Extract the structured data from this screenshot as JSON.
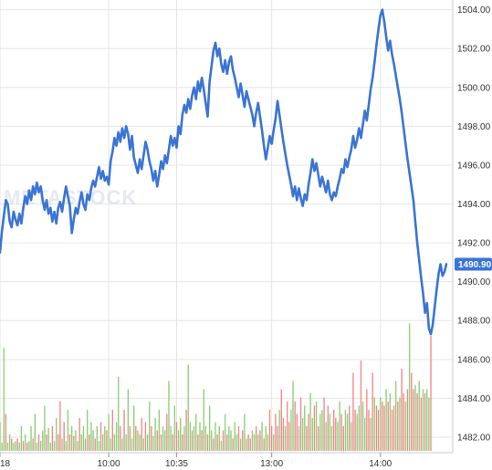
{
  "chart_data": {
    "type": "line",
    "title": "",
    "xlabel": "",
    "ylabel": "",
    "ylim": [
      1481.2,
      1504.5
    ],
    "grid": true,
    "watermark": "METASTOCK",
    "y_ticks": [
      1482,
      1484,
      1486,
      1488,
      1490,
      1492,
      1494,
      1496,
      1498,
      1500,
      1502,
      1504
    ],
    "y_tick_labels": [
      "1482.00",
      "1484.00",
      "1486.00",
      "1488.00",
      "1490.00",
      "1492.00",
      "1494.00",
      "1496.00",
      "1498.00",
      "1500.00",
      "1502.00",
      "1504.00"
    ],
    "x_ticks": [
      {
        "label": "18",
        "index": 0
      },
      {
        "label": "10:00",
        "index": 56
      },
      {
        "label": "10:35",
        "index": 91
      },
      {
        "label": "13:00",
        "index": 140
      },
      {
        "label": "14:00",
        "index": 196
      }
    ],
    "last_value": 1490.9,
    "last_value_label": "1490.90",
    "colors": {
      "line": "#3a74d4",
      "volume_up": "#8fcf7a",
      "volume_down": "#f08a8a",
      "grid": "#e6e6e6",
      "last_label_bg": "#3a74d4"
    },
    "series": [
      {
        "values": [
          1491.5,
          1492.6,
          1493.4,
          1494.2,
          1494.0,
          1493.1,
          1492.8,
          1493.6,
          1493.2,
          1492.9,
          1493.5,
          1493.0,
          1493.8,
          1494.4,
          1494.0,
          1494.7,
          1494.2,
          1494.9,
          1494.5,
          1495.1,
          1494.6,
          1494.9,
          1494.2,
          1493.7,
          1494.2,
          1493.5,
          1493.8,
          1493.1,
          1493.6,
          1493.0,
          1493.8,
          1494.1,
          1493.6,
          1494.3,
          1494.9,
          1494.4,
          1493.9,
          1492.5,
          1493.2,
          1493.8,
          1493.5,
          1494.1,
          1494.6,
          1494.0,
          1493.7,
          1494.5,
          1494.2,
          1494.8,
          1495.2,
          1494.9,
          1495.4,
          1495.9,
          1495.3,
          1495.7,
          1495.2,
          1495.4,
          1495.0,
          1496.2,
          1496.7,
          1497.4,
          1497.0,
          1497.7,
          1497.2,
          1497.9,
          1497.4,
          1498.0,
          1497.6,
          1496.8,
          1497.5,
          1496.4,
          1496.0,
          1495.6,
          1496.3,
          1495.8,
          1496.5,
          1497.2,
          1496.8,
          1496.2,
          1495.8,
          1495.2,
          1495.7,
          1494.9,
          1495.5,
          1496.2,
          1495.8,
          1496.5,
          1496.1,
          1496.8,
          1497.5,
          1497.0,
          1497.4,
          1496.9,
          1498.0,
          1497.6,
          1498.6,
          1499.1,
          1498.7,
          1499.4,
          1498.9,
          1499.6,
          1500.0,
          1499.4,
          1500.3,
          1499.8,
          1500.5,
          1499.9,
          1499.2,
          1498.5,
          1500.3,
          1501.1,
          1501.9,
          1502.3,
          1501.6,
          1502.0,
          1501.2,
          1500.8,
          1501.4,
          1500.7,
          1501.3,
          1501.6,
          1500.9,
          1500.5,
          1500.0,
          1499.5,
          1500.2,
          1499.6,
          1499.0,
          1499.8,
          1499.4,
          1499.0,
          1498.6,
          1498.0,
          1498.7,
          1499.2,
          1498.5,
          1497.8,
          1497.0,
          1496.3,
          1496.9,
          1497.5,
          1497.1,
          1497.8,
          1498.4,
          1499.3,
          1498.6,
          1497.9,
          1497.2,
          1496.6,
          1496.0,
          1495.5,
          1495.0,
          1494.4,
          1494.9,
          1494.2,
          1494.8,
          1494.3,
          1493.9,
          1494.5,
          1494.2,
          1495.0,
          1495.6,
          1496.3,
          1495.7,
          1496.1,
          1495.5,
          1494.9,
          1495.4,
          1495.0,
          1494.6,
          1495.2,
          1494.5,
          1494.2,
          1494.6,
          1494.4,
          1494.9,
          1495.3,
          1495.8,
          1495.6,
          1496.3,
          1495.9,
          1496.4,
          1496.8,
          1497.5,
          1496.9,
          1497.3,
          1497.9,
          1497.4,
          1498.1,
          1498.8,
          1498.3,
          1499.1,
          1499.9,
          1500.5,
          1501.3,
          1502.2,
          1503.0,
          1503.7,
          1504.0,
          1503.4,
          1502.6,
          1501.9,
          1502.4,
          1501.7,
          1501.2,
          1500.6,
          1500.0,
          1499.4,
          1498.7,
          1497.9,
          1497.1,
          1496.3,
          1495.6,
          1494.9,
          1494.2,
          1493.1,
          1492.0,
          1491.1,
          1490.2,
          1489.4,
          1488.4,
          1488.9,
          1487.6,
          1487.3,
          1487.8,
          1488.7,
          1489.6,
          1490.4,
          1490.9,
          1490.3,
          1490.5,
          1490.9
        ]
      }
    ],
    "volume": {
      "values": [
        0.35,
        0.1,
        1.25,
        0.45,
        0.1,
        0.2,
        0.15,
        0.1,
        0.12,
        0.15,
        0.1,
        0.3,
        0.12,
        0.2,
        0.1,
        0.12,
        0.3,
        0.15,
        0.45,
        0.1,
        0.2,
        0.12,
        0.25,
        0.55,
        0.2,
        0.28,
        0.1,
        0.3,
        0.12,
        0.4,
        0.2,
        0.6,
        0.15,
        0.35,
        0.12,
        0.5,
        0.2,
        0.3,
        0.18,
        0.25,
        0.12,
        0.4,
        0.2,
        0.3,
        0.15,
        0.5,
        0.2,
        0.35,
        0.25,
        0.15,
        0.3,
        0.12,
        0.35,
        0.2,
        0.3,
        0.25,
        0.45,
        0.15,
        0.5,
        0.2,
        0.35,
        0.9,
        0.3,
        0.15,
        0.5,
        0.2,
        0.75,
        0.3,
        0.15,
        0.55,
        0.3,
        0.25,
        0.2,
        0.4,
        0.15,
        0.35,
        0.2,
        0.6,
        0.3,
        0.18,
        0.4,
        0.25,
        0.5,
        0.2,
        0.3,
        0.25,
        0.45,
        0.85,
        0.3,
        0.2,
        0.55,
        0.35,
        0.25,
        0.4,
        0.2,
        0.3,
        0.5,
        1.05,
        0.35,
        0.25,
        0.3,
        0.45,
        0.2,
        0.35,
        0.25,
        0.75,
        0.3,
        0.2,
        0.55,
        0.25,
        0.15,
        0.35,
        0.2,
        0.3,
        0.12,
        0.25,
        0.45,
        0.2,
        0.3,
        0.25,
        0.15,
        0.35,
        0.2,
        0.3,
        0.15,
        0.25,
        0.45,
        0.15,
        0.2,
        0.15,
        0.25,
        0.2,
        0.3,
        0.2,
        0.25,
        0.35,
        0.15,
        0.3,
        0.2,
        0.5,
        0.3,
        0.2,
        0.45,
        0.3,
        0.5,
        0.75,
        0.4,
        0.3,
        0.6,
        0.35,
        0.5,
        0.85,
        0.6,
        0.45,
        0.3,
        0.65,
        0.4,
        0.55,
        0.3,
        0.45,
        0.7,
        0.4,
        0.55,
        0.6,
        0.3,
        0.45,
        0.5,
        0.65,
        0.35,
        0.55,
        0.45,
        0.3,
        0.5,
        0.4,
        0.35,
        0.6,
        0.45,
        0.3,
        0.5,
        0.45,
        0.55,
        0.35,
        0.95,
        0.5,
        0.45,
        0.55,
        1.1,
        0.6,
        0.4,
        0.75,
        0.5,
        0.4,
        0.95,
        0.65,
        0.55,
        0.5,
        0.65,
        0.6,
        0.55,
        0.75,
        0.6,
        0.7,
        0.5,
        0.55,
        0.85,
        0.6,
        0.65,
        1.0,
        0.7,
        0.6,
        0.75,
        1.55,
        0.95,
        0.75,
        0.8,
        0.7,
        0.85,
        0.65,
        0.75,
        0.7,
        0.75,
        0.65,
        1.4
      ],
      "up": [
        1,
        1,
        1,
        0,
        1,
        1,
        0,
        1,
        1,
        0,
        1,
        1,
        0,
        1,
        0,
        1,
        1,
        0,
        1,
        1,
        0,
        1,
        1,
        1,
        0,
        1,
        1,
        0,
        1,
        1,
        0,
        0,
        1,
        0,
        1,
        1,
        0,
        1,
        0,
        1,
        1,
        0,
        1,
        1,
        0,
        1,
        0,
        1,
        1,
        0,
        1,
        1,
        0,
        1,
        1,
        0,
        1,
        1,
        0,
        1,
        1,
        1,
        0,
        1,
        0,
        1,
        1,
        0,
        1,
        1,
        0,
        1,
        1,
        0,
        1,
        0,
        1,
        1,
        0,
        1,
        1,
        0,
        1,
        0,
        1,
        1,
        0,
        1,
        1,
        0,
        1,
        0,
        1,
        1,
        0,
        1,
        0,
        1,
        1,
        0,
        1,
        1,
        0,
        1,
        0,
        1,
        1,
        0,
        1,
        1,
        0,
        1,
        0,
        1,
        1,
        0,
        1,
        0,
        1,
        1,
        0,
        1,
        1,
        0,
        1,
        0,
        1,
        1,
        0,
        0,
        1,
        1,
        0,
        1,
        0,
        1,
        0,
        1,
        1,
        0,
        0,
        1,
        0,
        0,
        1,
        0,
        0,
        1,
        0,
        0,
        1,
        1,
        0,
        0,
        1,
        0,
        1,
        1,
        0,
        0,
        1,
        1,
        0,
        1,
        0,
        1,
        1,
        0,
        1,
        0,
        1,
        1,
        0,
        0,
        1,
        1,
        0,
        0,
        1,
        1,
        0,
        1,
        0,
        0,
        1,
        1,
        0,
        1,
        1,
        0,
        0,
        1,
        0,
        1,
        0,
        0,
        1,
        0,
        0,
        1,
        0,
        1,
        0,
        0,
        1,
        0,
        1,
        0,
        0,
        1,
        0,
        1,
        0,
        0,
        1,
        0,
        1,
        0,
        1,
        0,
        1,
        1
      ]
    }
  }
}
